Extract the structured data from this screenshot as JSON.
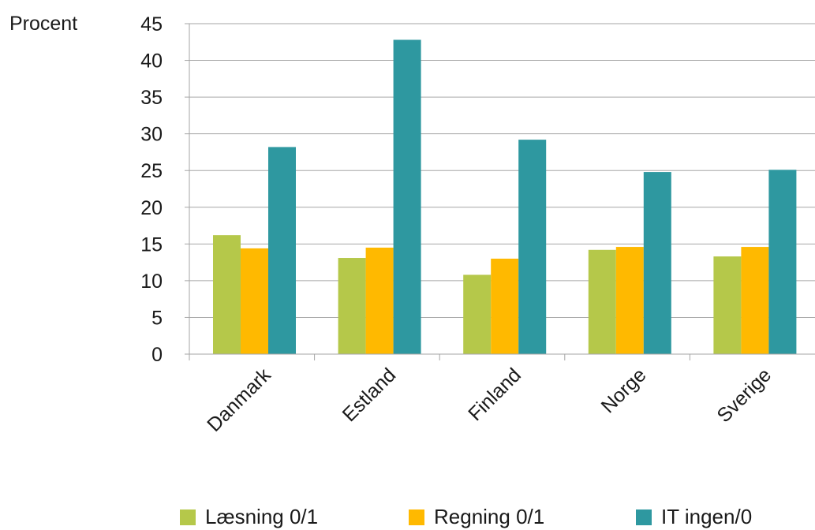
{
  "chart_data": {
    "type": "bar",
    "ylabel": "Procent",
    "ylim": [
      0,
      45
    ],
    "yticks": [
      0,
      5,
      10,
      15,
      20,
      25,
      30,
      35,
      40,
      45
    ],
    "grid": true,
    "legend_position": "bottom",
    "categories": [
      "Danmark",
      "Estland",
      "Finland",
      "Norge",
      "Sverige"
    ],
    "series": [
      {
        "name": "Læsning 0/1",
        "color": "#b5c84a",
        "values": [
          16.2,
          13.1,
          10.8,
          14.2,
          13.3
        ]
      },
      {
        "name": "Regning 0/1",
        "color": "#ffb900",
        "values": [
          14.4,
          14.5,
          13.0,
          14.6,
          14.6
        ]
      },
      {
        "name": "IT ingen/0",
        "color": "#2e98a0",
        "values": [
          28.2,
          42.8,
          29.2,
          24.8,
          25.1
        ]
      }
    ]
  }
}
